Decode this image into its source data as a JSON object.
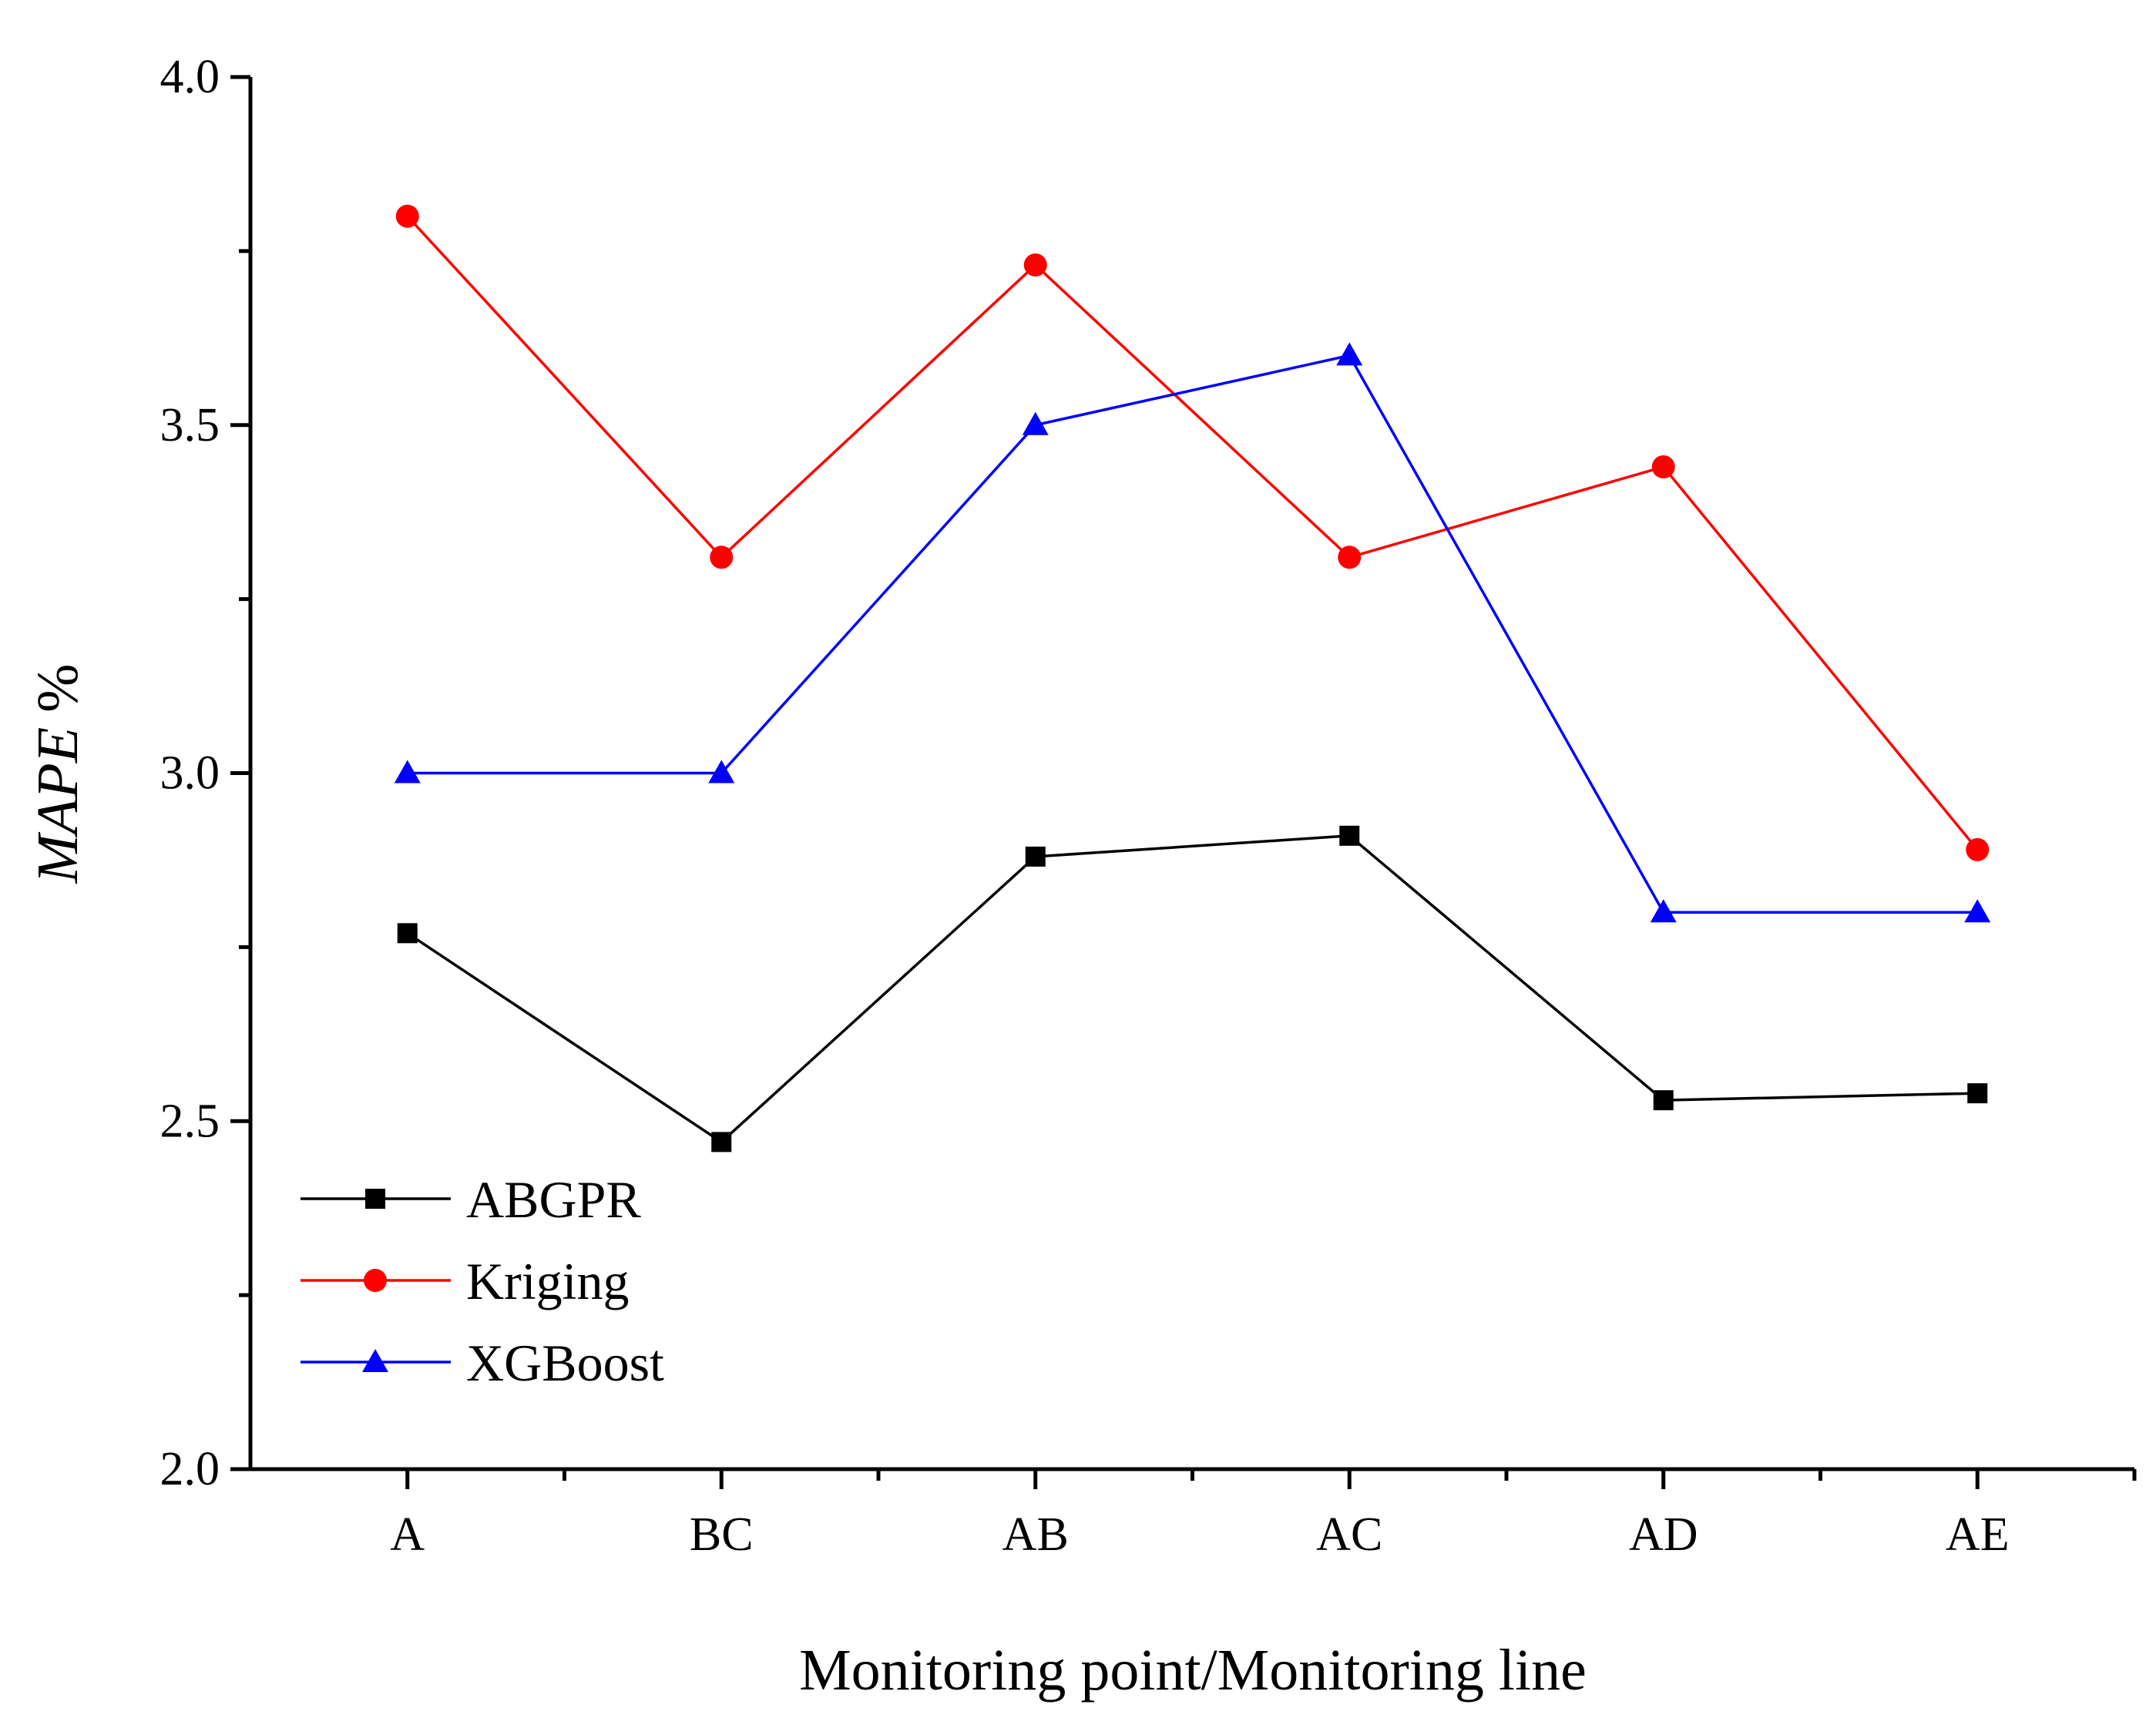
{
  "chart_data": {
    "type": "line",
    "title": "",
    "xlabel": "Monitoring point/Monitoring line",
    "ylabel_italic": "MAPE",
    "ylabel_suffix": " %",
    "ylim": [
      2.0,
      4.0
    ],
    "yticks": [
      2.0,
      2.5,
      3.0,
      3.5,
      4.0
    ],
    "ytick_labels": [
      "2.0",
      "2.5",
      "3.0",
      "3.5",
      "4.0"
    ],
    "yminor_step": 0.25,
    "categories": [
      "A",
      "BC",
      "AB",
      "AC",
      "AD",
      "AE"
    ],
    "grid": false,
    "legend_position": "bottom-left",
    "series": [
      {
        "name": "ABGPR",
        "color": "#000000",
        "marker": "square",
        "values": [
          2.77,
          2.47,
          2.88,
          2.91,
          2.53,
          2.54
        ]
      },
      {
        "name": "Kriging",
        "color": "#ff0000",
        "marker": "circle",
        "values": [
          3.8,
          3.31,
          3.73,
          3.31,
          3.44,
          2.89
        ]
      },
      {
        "name": "XGBoost",
        "color": "#0000ff",
        "marker": "triangle",
        "values": [
          3.0,
          3.0,
          3.5,
          3.6,
          2.8,
          2.8
        ]
      }
    ]
  }
}
